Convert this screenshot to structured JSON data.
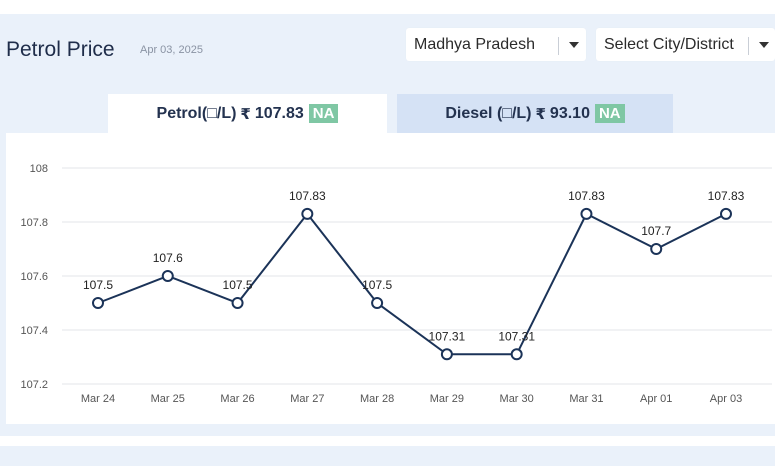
{
  "header": {
    "title": "Petrol Price",
    "date": "Apr 03, 2025"
  },
  "filters": {
    "state": "Madhya Pradesh",
    "city_placeholder": "Select City/District"
  },
  "tabs": [
    {
      "label": "Petrol(□/L)",
      "currency_icon": "₹",
      "price": "107.83",
      "badge": "NA"
    },
    {
      "label": "Diesel (□/L)",
      "currency_icon": "₹",
      "price": "93.10",
      "badge": "NA"
    }
  ],
  "colors": {
    "line": "#1b3358",
    "grid": "#e3e6ea",
    "badge": "#7fc7a4",
    "panel": "#eaf1fa"
  },
  "chart_data": {
    "type": "line",
    "categories": [
      "Mar 24",
      "Mar 25",
      "Mar 26",
      "Mar 27",
      "Mar 28",
      "Mar 29",
      "Mar 30",
      "Mar 31",
      "Apr 01",
      "Apr 03"
    ],
    "values": [
      107.5,
      107.6,
      107.5,
      107.83,
      107.5,
      107.31,
      107.31,
      107.83,
      107.7,
      107.83
    ],
    "data_labels": [
      "107.5",
      "107.6",
      "107.5",
      "107.83",
      "107.5",
      "107.31",
      "107.31",
      "107.83",
      "107.7",
      "107.83"
    ],
    "y_ticks": [
      "107.2",
      "107.4",
      "107.6",
      "107.8",
      "108"
    ],
    "ylim": [
      107.2,
      108
    ],
    "grid": true,
    "title": "",
    "xlabel": "",
    "ylabel": ""
  }
}
